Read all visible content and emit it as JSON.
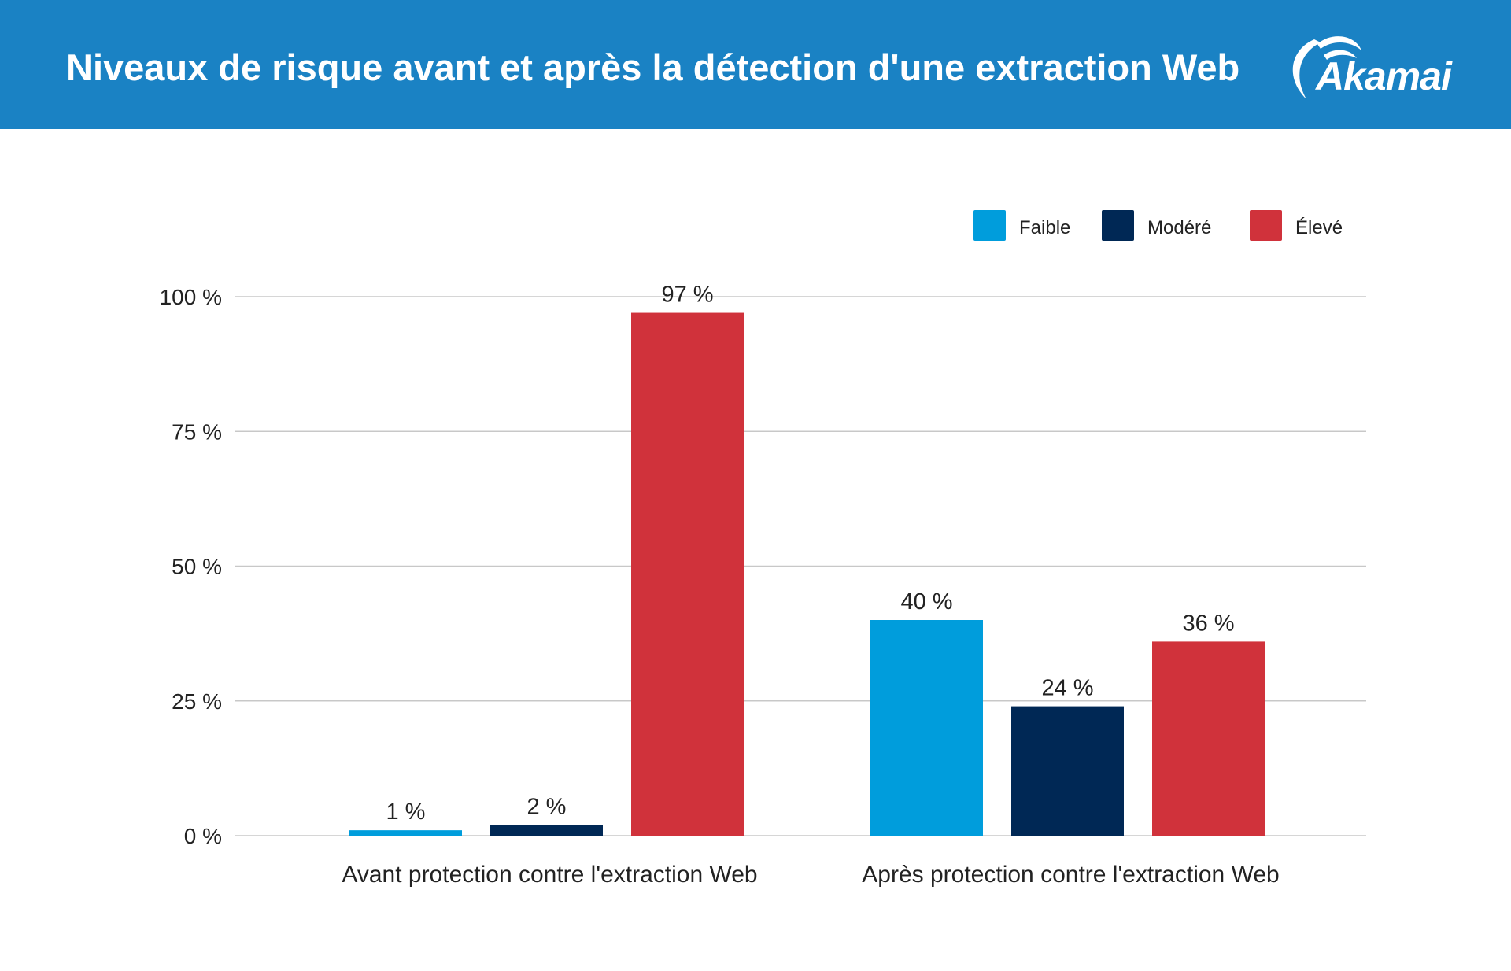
{
  "header": {
    "title": "Niveaux de risque avant et après la détection d'une extraction Web",
    "logo_text": "Akamai",
    "background_color": "#1a82c4"
  },
  "chart_data": {
    "type": "bar",
    "title": "Niveaux de risque avant et après la détection d'une extraction Web",
    "categories": [
      "Avant protection contre l'extraction Web",
      "Après protection contre l'extraction Web"
    ],
    "series": [
      {
        "name": "Faible",
        "values": [
          1,
          40
        ],
        "labels": [
          "1 %",
          "40 %"
        ],
        "color": "#009ddc"
      },
      {
        "name": "Modéré",
        "values": [
          2,
          24
        ],
        "labels": [
          "2 %",
          "24 %"
        ],
        "color": "#002855"
      },
      {
        "name": "Élevé",
        "values": [
          97,
          36
        ],
        "labels": [
          "97 %",
          "36 %"
        ],
        "color": "#d0323b"
      }
    ],
    "ylim": [
      0,
      100
    ],
    "yticks": [
      0,
      25,
      50,
      75,
      100
    ],
    "ytick_labels": [
      "0 %",
      "25 %",
      "50 %",
      "75 %",
      "100 %"
    ],
    "xlabel": "",
    "ylabel": "",
    "grid": true,
    "legend_position": "top-right"
  }
}
